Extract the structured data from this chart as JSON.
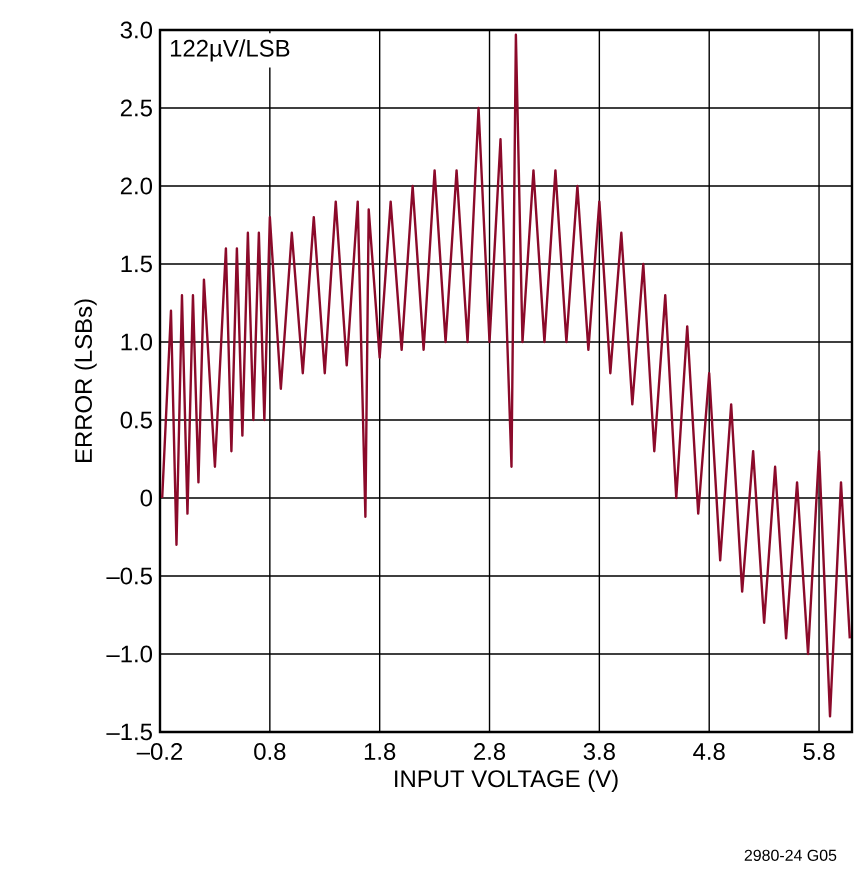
{
  "chart_data": {
    "type": "line",
    "xlabel": "INPUT VOLTAGE (V)",
    "ylabel": "ERROR (LSBs)",
    "annotations": [
      "122µV/LSB",
      "2980-24 G05"
    ],
    "xlim": [
      -0.2,
      6.1
    ],
    "xticks": [
      {
        "value": -0.2,
        "label": "–0.2"
      },
      0.8,
      1.8,
      2.8,
      3.8,
      4.8,
      5.8
    ],
    "ylim": [
      -1.5,
      3.0
    ],
    "yticks": [
      {
        "value": -1.5,
        "label": "–1.5"
      },
      {
        "value": -1.0,
        "label": "–1.0"
      },
      {
        "value": -0.5,
        "label": "–0.5"
      },
      0,
      0.5,
      {
        "value": 1.0,
        "label": "1.0"
      },
      1.5,
      {
        "value": 2.0,
        "label": "2.0"
      },
      2.5,
      {
        "value": 3.0,
        "label": "3.0"
      }
    ],
    "grid": true,
    "marker": "none",
    "line_style": "solid",
    "series": [
      {
        "color": "#8b0a2a",
        "x": [
          -0.18,
          -0.1,
          -0.05,
          0.0,
          0.05,
          0.1,
          0.15,
          0.2,
          0.3,
          0.4,
          0.45,
          0.5,
          0.55,
          0.6,
          0.65,
          0.7,
          0.75,
          0.8,
          0.9,
          1.0,
          1.1,
          1.2,
          1.3,
          1.4,
          1.5,
          1.6,
          1.67,
          1.7,
          1.8,
          1.9,
          2.0,
          2.1,
          2.2,
          2.3,
          2.4,
          2.5,
          2.6,
          2.7,
          2.8,
          2.9,
          3.0,
          3.04,
          3.1,
          3.2,
          3.3,
          3.4,
          3.5,
          3.6,
          3.7,
          3.8,
          3.9,
          4.0,
          4.1,
          4.2,
          4.3,
          4.4,
          4.5,
          4.6,
          4.7,
          4.8,
          4.9,
          5.0,
          5.1,
          5.2,
          5.3,
          5.4,
          5.5,
          5.6,
          5.7,
          5.8,
          5.9,
          6.0,
          6.08
        ],
        "values": [
          0.0,
          1.2,
          -0.3,
          1.3,
          -0.1,
          1.3,
          0.1,
          1.4,
          0.2,
          1.6,
          0.3,
          1.6,
          0.4,
          1.7,
          0.5,
          1.7,
          0.5,
          1.8,
          0.7,
          1.7,
          0.8,
          1.8,
          0.8,
          1.9,
          0.85,
          1.9,
          -0.12,
          1.85,
          0.9,
          1.9,
          0.95,
          2.0,
          0.95,
          2.1,
          1.0,
          2.1,
          1.0,
          2.5,
          1.0,
          2.3,
          0.2,
          2.97,
          1.0,
          2.1,
          1.0,
          2.1,
          1.0,
          2.0,
          0.95,
          1.9,
          0.8,
          1.7,
          0.6,
          1.5,
          0.3,
          1.3,
          0.0,
          1.1,
          -0.1,
          0.8,
          -0.4,
          0.6,
          -0.6,
          0.3,
          -0.8,
          0.2,
          -0.9,
          0.1,
          -1.0,
          0.3,
          -1.4,
          0.1,
          -0.9
        ]
      }
    ]
  }
}
